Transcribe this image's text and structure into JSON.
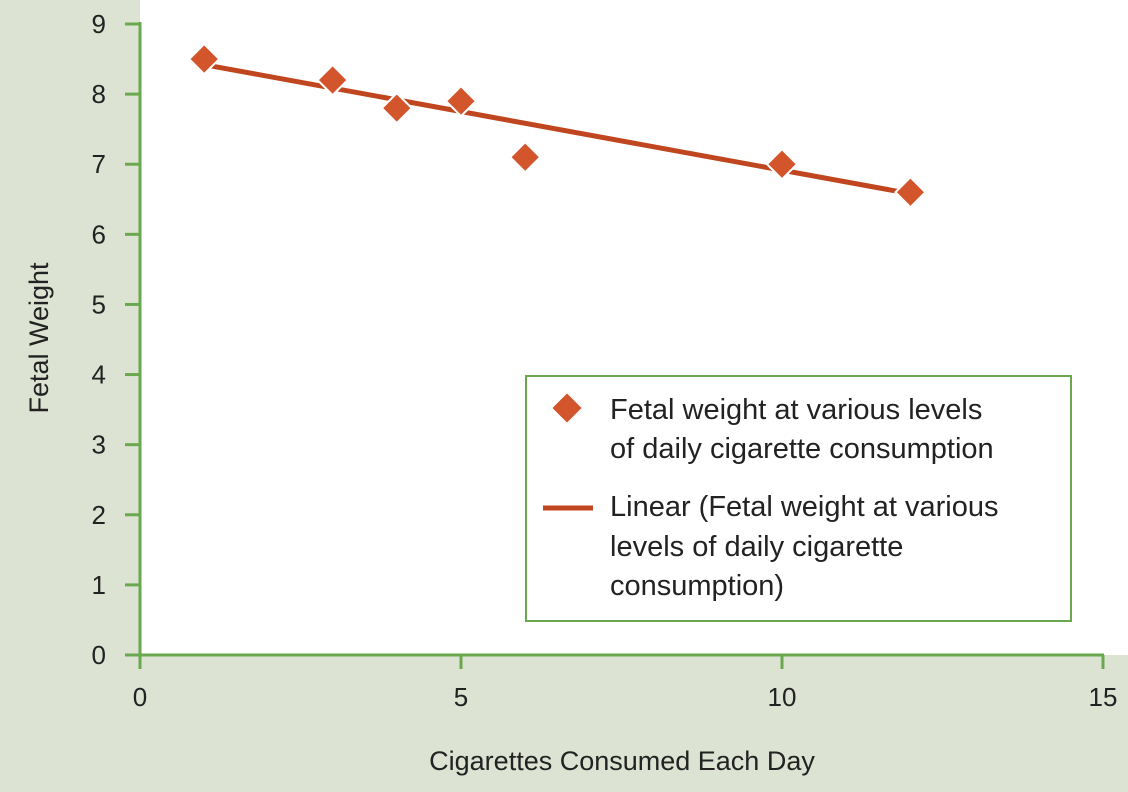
{
  "chart_data": {
    "type": "scatter",
    "title": "",
    "xlabel": "Cigarettes Consumed Each Day",
    "ylabel": "Fetal Weight",
    "xlim": [
      0,
      15
    ],
    "ylim": [
      0,
      9
    ],
    "xticks": [
      "0",
      "5",
      "10",
      "15"
    ],
    "yticks": [
      "0",
      "1",
      "2",
      "3",
      "4",
      "5",
      "6",
      "7",
      "8",
      "9"
    ],
    "grid": false,
    "legend_position": "lower-right",
    "series": [
      {
        "name": "Fetal weight at various levels of daily cigarette consumption",
        "legend_lines": [
          "Fetal weight at various levels",
          "of daily cigarette consumption"
        ],
        "marker": "diamond",
        "x": [
          1,
          3,
          4,
          5,
          6,
          10,
          12
        ],
        "y": [
          8.5,
          8.2,
          7.8,
          7.9,
          7.1,
          7.0,
          6.6
        ]
      },
      {
        "name": "Linear (Fetal weight at various levels of daily cigarette consumption)",
        "legend_lines": [
          "Linear (Fetal weight at various",
          "levels of daily cigarette",
          "consumption)"
        ],
        "type": "line",
        "x": [
          1,
          12
        ],
        "y": [
          8.42,
          6.58
        ]
      }
    ],
    "colors": {
      "marker_fill": "#d2552c",
      "marker_stroke": "#ffffff",
      "trend_line": "#c0461f",
      "axis": "#6aa84f",
      "plot_bg": "#ffffff",
      "page_bg": "#dde3d3",
      "legend_border": "#6aa84f"
    }
  }
}
